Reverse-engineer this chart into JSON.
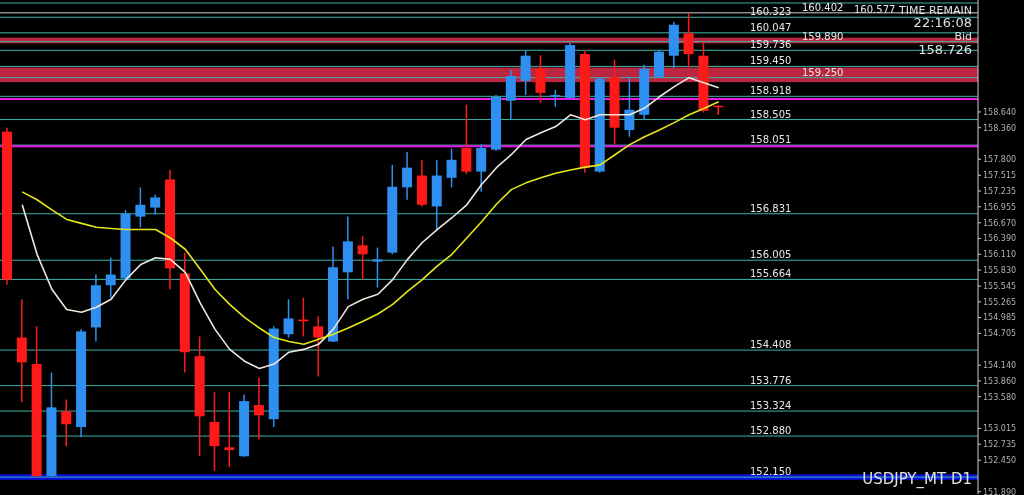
{
  "chart_data": {
    "type": "candlestick",
    "categories": [
      null,
      null,
      null,
      null,
      null,
      null,
      null,
      null,
      null,
      null,
      null,
      null,
      null,
      null,
      null,
      null,
      null,
      null,
      null,
      null,
      null,
      null,
      null,
      null,
      null,
      null,
      null,
      null,
      null,
      null,
      null,
      null,
      null,
      null,
      null,
      null,
      null,
      null,
      null,
      null,
      null,
      null,
      null,
      null,
      null,
      null,
      null,
      null,
      null,
      null,
      null,
      null,
      null,
      null,
      null,
      null,
      null,
      null,
      null,
      null,
      null,
      null,
      null,
      null,
      null,
      null
    ],
    "ohlc": [
      [
        158.29,
        158.36,
        155.57,
        155.66
      ],
      [
        154.63,
        155.31,
        153.48,
        154.19
      ],
      [
        154.16,
        154.83,
        152.15,
        152.17
      ],
      [
        152.17,
        154.01,
        152.15,
        153.39
      ],
      [
        153.32,
        153.53,
        152.7,
        153.09
      ],
      [
        153.04,
        154.78,
        152.86,
        154.74
      ],
      [
        154.81,
        155.75,
        154.56,
        155.56
      ],
      [
        155.56,
        156.05,
        155.34,
        155.75
      ],
      [
        155.68,
        156.9,
        155.64,
        156.83
      ],
      [
        156.78,
        157.3,
        156.59,
        156.99
      ],
      [
        156.94,
        157.17,
        156.82,
        157.12
      ],
      [
        157.44,
        157.61,
        155.49,
        155.86
      ],
      [
        155.77,
        156.14,
        154.01,
        154.37
      ],
      [
        154.3,
        154.65,
        152.52,
        153.23
      ],
      [
        153.13,
        153.66,
        152.26,
        152.7
      ],
      [
        152.68,
        153.66,
        152.33,
        152.63
      ],
      [
        152.52,
        153.62,
        152.51,
        153.5
      ],
      [
        153.43,
        153.92,
        152.82,
        153.25
      ],
      [
        153.18,
        154.83,
        153.04,
        154.79
      ],
      [
        154.69,
        155.31,
        154.63,
        154.97
      ],
      [
        154.95,
        155.34,
        154.65,
        154.92
      ],
      [
        154.83,
        155.01,
        153.94,
        154.63
      ],
      [
        154.56,
        156.25,
        154.55,
        155.88
      ],
      [
        155.79,
        156.78,
        155.31,
        156.34
      ],
      [
        156.27,
        156.43,
        155.66,
        156.11
      ],
      [
        155.98,
        156.23,
        155.52,
        156.02
      ],
      [
        156.14,
        157.7,
        156.11,
        157.31
      ],
      [
        157.3,
        157.93,
        157.08,
        157.65
      ],
      [
        157.51,
        157.79,
        156.96,
        156.99
      ],
      [
        156.96,
        157.79,
        156.55,
        157.51
      ],
      [
        157.47,
        157.99,
        157.3,
        157.79
      ],
      [
        158.0,
        158.77,
        157.54,
        157.58
      ],
      [
        157.58,
        158.06,
        157.22,
        158.0
      ],
      [
        157.97,
        158.94,
        157.95,
        158.91
      ],
      [
        158.84,
        159.39,
        158.5,
        159.28
      ],
      [
        159.19,
        159.74,
        158.94,
        159.64
      ],
      [
        159.41,
        159.65,
        158.8,
        158.98
      ],
      [
        158.91,
        159.03,
        158.73,
        158.94
      ],
      [
        158.89,
        159.87,
        158.86,
        159.83
      ],
      [
        159.67,
        159.74,
        157.56,
        157.65
      ],
      [
        157.58,
        159.25,
        157.56,
        159.23
      ],
      [
        159.26,
        159.57,
        158.06,
        158.36
      ],
      [
        158.32,
        159.26,
        158.2,
        158.68
      ],
      [
        158.59,
        159.48,
        158.5,
        159.41
      ],
      [
        159.26,
        159.74,
        159.25,
        159.71
      ],
      [
        159.64,
        160.24,
        159.42,
        160.19
      ],
      [
        160.04,
        160.4,
        159.42,
        159.67
      ],
      [
        159.64,
        159.87,
        158.63,
        158.66
      ],
      [
        158.75,
        158.76,
        158.59,
        158.73
      ],
      null,
      null,
      null,
      null,
      null,
      null,
      null,
      null,
      null,
      null,
      null,
      null,
      null,
      null,
      null,
      null,
      null
    ],
    "colors": [
      "#ff1a1a",
      "#ff1a1a",
      "#ff1a1a",
      "#2f8ff0",
      "#ff1a1a",
      "#2f8ff0",
      "#2f8ff0",
      "#2f8ff0",
      "#2f8ff0",
      "#2f8ff0",
      "#2f8ff0",
      "#ff1a1a",
      "#ff1a1a",
      "#ff1a1a",
      "#ff1a1a",
      "#ff1a1a",
      "#2f8ff0",
      "#ff1a1a",
      "#2f8ff0",
      "#2f8ff0",
      "#ff1a1a",
      "#ff1a1a",
      "#2f8ff0",
      "#2f8ff0",
      "#ff1a1a",
      "#2f8ff0",
      "#2f8ff0",
      "#2f8ff0",
      "#ff1a1a",
      "#2f8ff0",
      "#2f8ff0",
      "#ff1a1a",
      "#2f8ff0",
      "#2f8ff0",
      "#2f8ff0",
      "#2f8ff0",
      "#ff1a1a",
      "#2f8ff0",
      "#2f8ff0",
      "#ff1a1a",
      "#2f8ff0",
      "#ff1a1a",
      "#2f8ff0",
      "#2f8ff0",
      "#2f8ff0",
      "#2f8ff0",
      "#ff1a1a",
      "#ff1a1a",
      "#ff1a1a",
      null,
      null,
      null,
      null,
      null,
      null,
      null,
      null,
      null,
      null,
      null,
      null,
      null,
      null,
      null,
      null,
      null
    ],
    "series": [
      {
        "type": "line",
        "color": "#f0e6dc",
        "values": [
          null,
          156.99,
          156.11,
          155.49,
          155.13,
          155.08,
          155.17,
          155.31,
          155.66,
          155.93,
          156.05,
          156.02,
          155.79,
          155.25,
          154.78,
          154.42,
          154.21,
          154.08,
          154.16,
          154.37,
          154.42,
          154.51,
          154.78,
          155.18,
          155.31,
          155.4,
          155.66,
          156.02,
          156.32,
          156.55,
          156.76,
          156.99,
          157.35,
          157.65,
          157.88,
          158.15,
          158.27,
          158.38,
          158.59,
          158.5,
          158.59,
          158.59,
          158.59,
          158.71,
          158.91,
          159.09,
          159.25,
          159.16,
          159.07,
          null,
          null,
          null,
          null,
          null,
          null,
          null,
          null,
          null,
          null,
          null,
          null,
          null,
          null,
          null,
          null,
          null
        ]
      },
      {
        "type": "line",
        "color": "#e6e619",
        "values": [
          null,
          157.22,
          157.08,
          156.9,
          156.73,
          156.66,
          156.59,
          156.57,
          156.55,
          156.55,
          156.55,
          156.4,
          156.2,
          155.85,
          155.49,
          155.22,
          154.99,
          154.8,
          154.63,
          154.56,
          154.51,
          154.6,
          154.69,
          154.8,
          154.92,
          155.05,
          155.22,
          155.45,
          155.66,
          155.9,
          156.11,
          156.4,
          156.69,
          157.0,
          157.26,
          157.38,
          157.47,
          157.55,
          157.61,
          157.66,
          157.7,
          157.88,
          158.06,
          158.2,
          158.32,
          158.45,
          158.59,
          158.7,
          158.82,
          null,
          null,
          null,
          null,
          null,
          null,
          null,
          null,
          null,
          null,
          null,
          null,
          null,
          null,
          null,
          null,
          null
        ]
      }
    ],
    "ylim": [
      151.85,
      160.63
    ],
    "yticks": [
      {
        "value": 158.64,
        "label": "158.640"
      },
      {
        "value": 158.36,
        "label": "158.360"
      },
      {
        "value": 157.8,
        "label": "157.800"
      },
      {
        "value": 157.515,
        "label": "157.515"
      },
      {
        "value": 157.235,
        "label": "157.235"
      },
      {
        "value": 156.955,
        "label": "156.955"
      },
      {
        "value": 156.67,
        "label": "156.670"
      },
      {
        "value": 156.39,
        "label": "156.390"
      },
      {
        "value": 156.11,
        "label": "156.110"
      },
      {
        "value": 155.83,
        "label": "155.830"
      },
      {
        "value": 155.545,
        "label": "155.545"
      },
      {
        "value": 155.265,
        "label": "155.265"
      },
      {
        "value": 154.985,
        "label": "154.985"
      },
      {
        "value": 154.705,
        "label": "154.705"
      },
      {
        "value": 154.14,
        "label": "154.140"
      },
      {
        "value": 153.86,
        "label": "153.860"
      },
      {
        "value": 153.58,
        "label": "153.580"
      },
      {
        "value": 153.015,
        "label": "153.015"
      },
      {
        "value": 152.735,
        "label": "152.735"
      },
      {
        "value": 152.45,
        "label": "152.450"
      },
      {
        "value": 151.89,
        "label": "151.890"
      }
    ],
    "ref_lines": [
      {
        "axis": "y",
        "value": 160.577,
        "label": "160.577",
        "color": "#3cb4a8"
      },
      {
        "axis": "y",
        "value": 160.402,
        "label": "160.402",
        "color": "#d0d0d0"
      },
      {
        "axis": "y",
        "value": 160.323,
        "label": "160.323",
        "color": "#3cb4a8"
      },
      {
        "axis": "y",
        "value": 160.047,
        "label": "160.047",
        "color": "#3cb4a8"
      },
      {
        "axis": "y",
        "value": 159.89,
        "label": "159.890",
        "color": "#3cb4a8"
      },
      {
        "axis": "y",
        "value": 159.736,
        "label": "159.736",
        "color": "#3cb4a8"
      },
      {
        "axis": "y",
        "value": 159.45,
        "label": "159.450",
        "color": "#3cb4a8"
      },
      {
        "axis": "y",
        "value": 159.25,
        "label": "159.250",
        "color": "#3cb4a8"
      },
      {
        "axis": "y",
        "value": 158.918,
        "label": "158.918",
        "color": "#3cb4a8"
      },
      {
        "axis": "y",
        "value": 158.505,
        "label": "158.505",
        "color": "#3cb4a8"
      },
      {
        "axis": "y",
        "value": 158.051,
        "label": "158.051",
        "color": "#3cb4a8"
      },
      {
        "axis": "y",
        "value": 156.831,
        "label": "156.831",
        "color": "#3cb4a8"
      },
      {
        "axis": "y",
        "value": 156.005,
        "label": "156.005",
        "color": "#3cb4a8"
      },
      {
        "axis": "y",
        "value": 155.664,
        "label": "155.664",
        "color": "#3cb4a8"
      },
      {
        "axis": "y",
        "value": 154.408,
        "label": "154.408",
        "color": "#3cb4a8"
      },
      {
        "axis": "y",
        "value": 153.776,
        "label": "153.776",
        "color": "#3cb4a8"
      },
      {
        "axis": "y",
        "value": 153.324,
        "label": "153.324",
        "color": "#3cb4a8"
      },
      {
        "axis": "y",
        "value": 152.88,
        "label": "152.880",
        "color": "#3cb4a8"
      },
      {
        "axis": "y",
        "value": 152.15,
        "label": "152.150",
        "color": "#3cb4a8"
      },
      {
        "axis": "y",
        "value": 158.87,
        "color": "#e619e6"
      },
      {
        "axis": "y",
        "value": 158.03,
        "color": "#e619e6"
      }
    ],
    "bands": [
      {
        "axis": "y",
        "from": 159.17,
        "to": 159.43,
        "color": "#dc2c4a"
      },
      {
        "axis": "y",
        "from": 159.86,
        "to": 159.96,
        "color": "#dc2c4a"
      },
      {
        "axis": "y",
        "from": 152.1,
        "to": 152.2,
        "color": "#0a14ff"
      }
    ],
    "annotations": [
      "TIME REMAIN",
      "22:16:08",
      "Bid",
      "158.726",
      "USDJPY_MT D1"
    ],
    "legend": false,
    "grid": false
  }
}
